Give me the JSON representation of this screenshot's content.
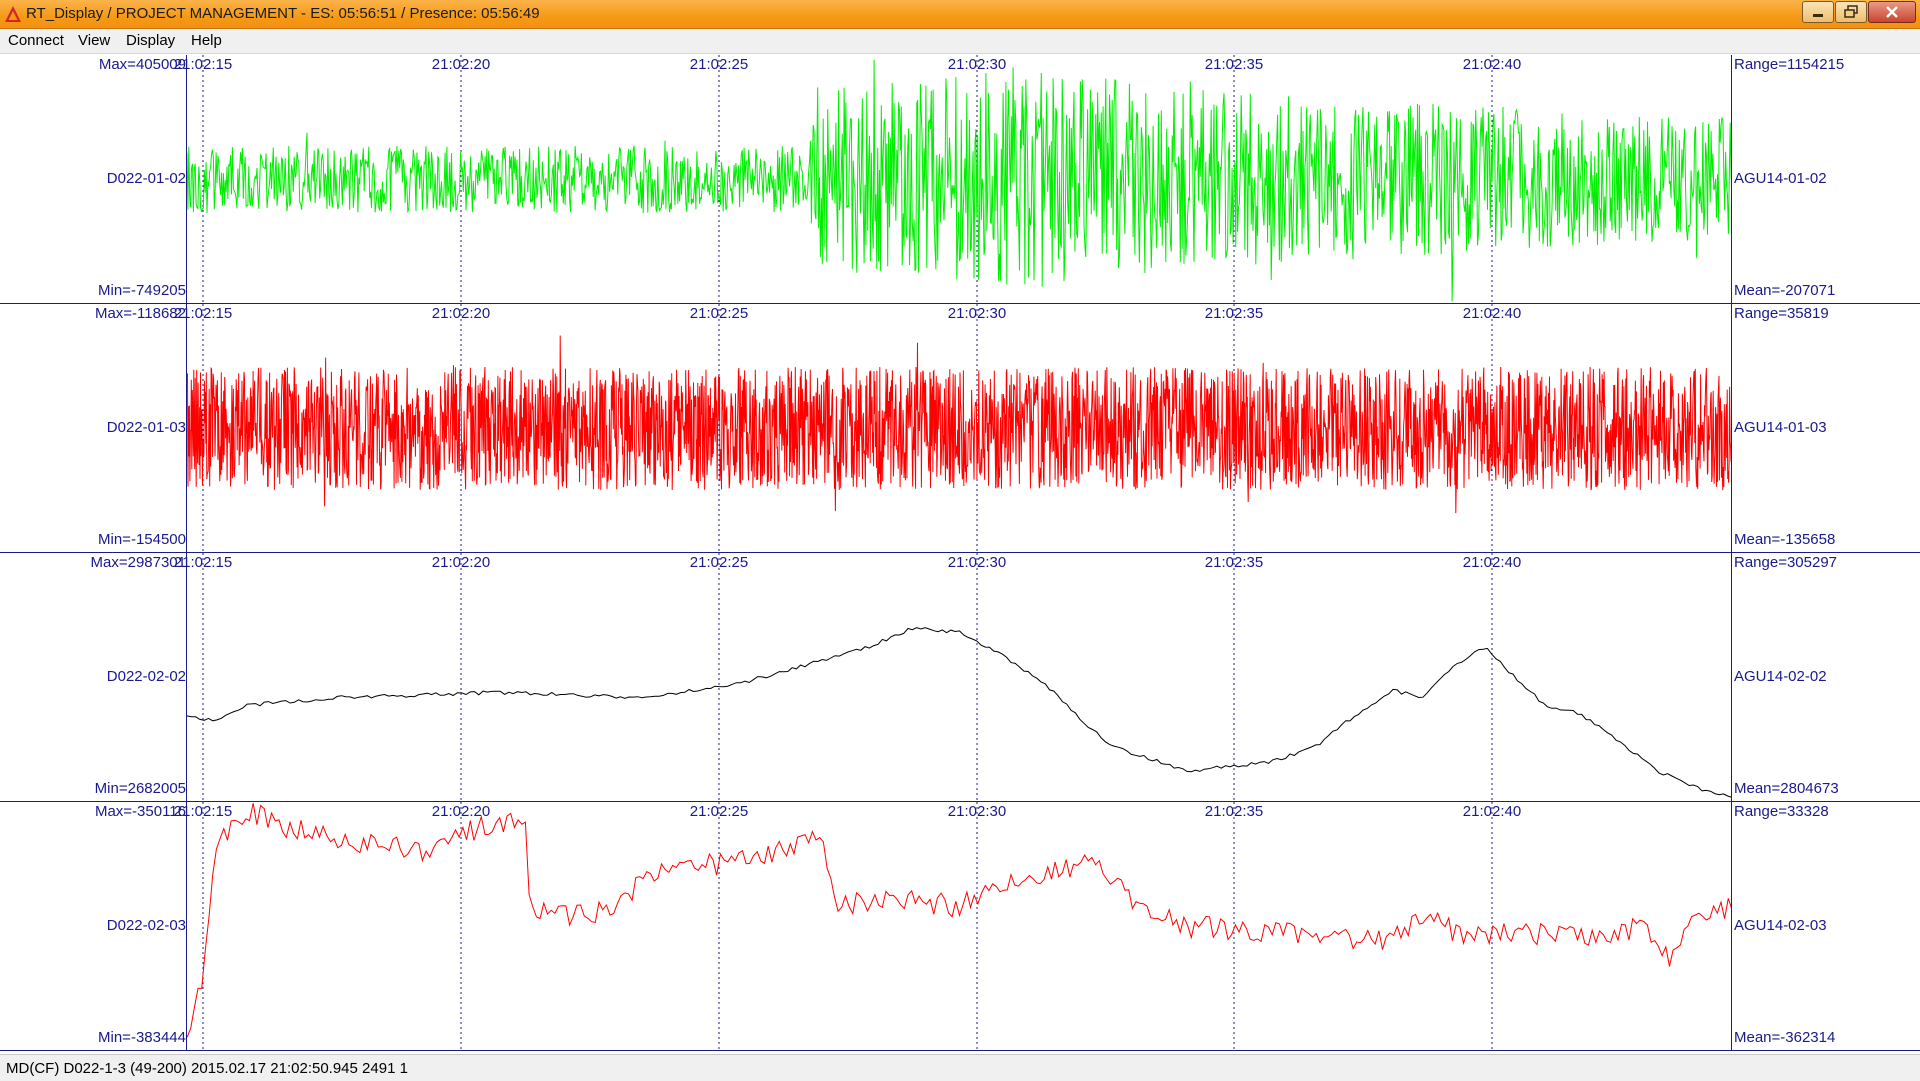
{
  "window": {
    "title": "RT_Display / PROJECT MANAGEMENT - ES: 05:56:51 / Presence:  05:56:49"
  },
  "menu": {
    "items": [
      {
        "label": "Connect"
      },
      {
        "label": "View"
      },
      {
        "label": "Display"
      },
      {
        "label": "Help"
      }
    ]
  },
  "time_ticks": [
    "21:02:15",
    "21:02:20",
    "21:02:25",
    "21:02:30",
    "21:02:35",
    "21:02:40"
  ],
  "chart_data": [
    {
      "type": "line",
      "channel": "D022-01-02",
      "station": "AGU14-01-02",
      "max_label": "Max=405009",
      "min_label": "Min=-749205",
      "range_label": "Range=1154215",
      "mean_label": "Mean=-207071",
      "color": "#00ee00",
      "style": "noise",
      "series": [
        {
          "name": "",
          "envelope": [
            [
              0,
              0.3
            ],
            [
              0.4,
              0.3
            ],
            [
              0.41,
              0.8
            ],
            [
              0.55,
              1.0
            ],
            [
              0.7,
              0.75
            ],
            [
              1,
              0.55
            ]
          ]
        }
      ]
    },
    {
      "type": "line",
      "channel": "D022-01-03",
      "station": "AGU14-01-03",
      "max_label": "Max=-118682",
      "min_label": "Min=-154500",
      "range_label": "Range=35819",
      "mean_label": "Mean=-135658",
      "color": "#ff0000",
      "style": "dense-noise",
      "series": [
        {
          "name": "",
          "envelope": [
            [
              0,
              0.55
            ],
            [
              1,
              0.55
            ]
          ]
        }
      ]
    },
    {
      "type": "line",
      "channel": "D022-02-02",
      "station": "AGU14-02-02",
      "max_label": "Max=2987301",
      "min_label": "Min=2682005",
      "range_label": "Range=305297",
      "mean_label": "Mean=2804673",
      "color": "#000000",
      "style": "smooth",
      "series": [
        {
          "name": "",
          "points": [
            [
              0,
              0.66
            ],
            [
              0.02,
              0.67
            ],
            [
              0.04,
              0.61
            ],
            [
              0.1,
              0.58
            ],
            [
              0.2,
              0.56
            ],
            [
              0.3,
              0.58
            ],
            [
              0.36,
              0.52
            ],
            [
              0.4,
              0.45
            ],
            [
              0.44,
              0.38
            ],
            [
              0.47,
              0.3
            ],
            [
              0.5,
              0.32
            ],
            [
              0.53,
              0.42
            ],
            [
              0.56,
              0.55
            ],
            [
              0.58,
              0.68
            ],
            [
              0.6,
              0.78
            ],
            [
              0.62,
              0.82
            ],
            [
              0.65,
              0.88
            ],
            [
              0.67,
              0.86
            ],
            [
              0.7,
              0.84
            ],
            [
              0.73,
              0.78
            ],
            [
              0.75,
              0.68
            ],
            [
              0.78,
              0.55
            ],
            [
              0.8,
              0.58
            ],
            [
              0.82,
              0.45
            ],
            [
              0.84,
              0.38
            ],
            [
              0.86,
              0.5
            ],
            [
              0.88,
              0.62
            ],
            [
              0.9,
              0.64
            ],
            [
              0.92,
              0.72
            ],
            [
              0.95,
              0.87
            ],
            [
              0.98,
              0.95
            ],
            [
              1.0,
              0.98
            ]
          ]
        }
      ]
    },
    {
      "type": "line",
      "channel": "D022-02-03",
      "station": "AGU14-02-03",
      "max_label": "Max=-350116",
      "min_label": "Min=-383444",
      "range_label": "Range=33328",
      "mean_label": "Mean=-362314",
      "color": "#ff0000",
      "style": "jagged",
      "series": [
        {
          "name": "",
          "points": [
            [
              0,
              0.98
            ],
            [
              0.01,
              0.7
            ],
            [
              0.02,
              0.15
            ],
            [
              0.04,
              0.03
            ],
            [
              0.06,
              0.1
            ],
            [
              0.1,
              0.15
            ],
            [
              0.15,
              0.2
            ],
            [
              0.19,
              0.1
            ],
            [
              0.22,
              0.08
            ],
            [
              0.222,
              0.45
            ],
            [
              0.26,
              0.45
            ],
            [
              0.28,
              0.42
            ],
            [
              0.3,
              0.28
            ],
            [
              0.33,
              0.26
            ],
            [
              0.37,
              0.23
            ],
            [
              0.41,
              0.12
            ],
            [
              0.422,
              0.42
            ],
            [
              0.45,
              0.38
            ],
            [
              0.5,
              0.42
            ],
            [
              0.54,
              0.3
            ],
            [
              0.58,
              0.25
            ],
            [
              0.6,
              0.3
            ],
            [
              0.62,
              0.45
            ],
            [
              0.65,
              0.5
            ],
            [
              0.7,
              0.52
            ],
            [
              0.75,
              0.55
            ],
            [
              0.78,
              0.55
            ],
            [
              0.8,
              0.45
            ],
            [
              0.83,
              0.55
            ],
            [
              0.85,
              0.52
            ],
            [
              0.88,
              0.53
            ],
            [
              0.91,
              0.55
            ],
            [
              0.94,
              0.5
            ],
            [
              0.96,
              0.62
            ],
            [
              0.98,
              0.45
            ],
            [
              1.0,
              0.42
            ]
          ]
        }
      ]
    }
  ],
  "status": {
    "text": "MD(CF) D022-1-3 (49-200) 2015.02.17 21:02:50.945 2491 1"
  }
}
